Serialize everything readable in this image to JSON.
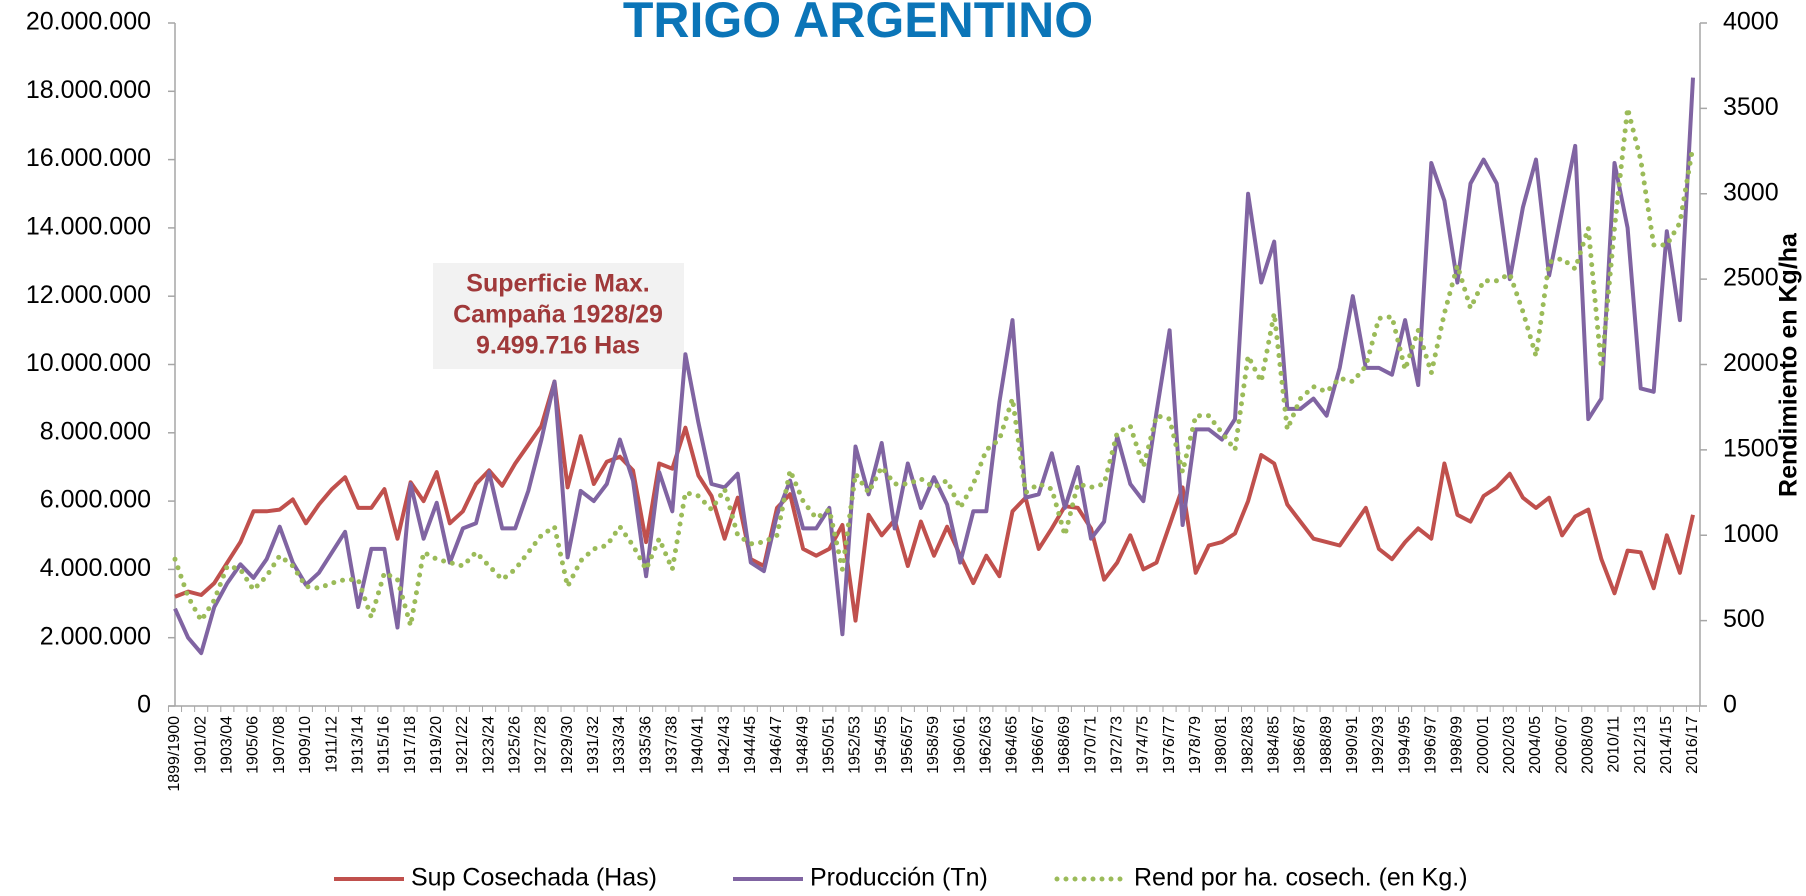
{
  "chart_data": {
    "type": "line",
    "title": "TRIGO ARGENTINO",
    "y2label": "Rendimiento en Kg/ha",
    "annotation": [
      "Superficie Max.",
      "Campaña 1928/29",
      "9.499.716  Has"
    ],
    "categories": [
      "1899/1900",
      null,
      "1901/02",
      null,
      "1903/04",
      null,
      "1905/06",
      null,
      "1907/08",
      null,
      "1909/10",
      null,
      "1911/12",
      null,
      "1913/14",
      null,
      "1915/16",
      null,
      "1917/18",
      null,
      "1919/20",
      null,
      "1921/22",
      null,
      "1923/24",
      null,
      "1925/26",
      null,
      "1927/28",
      null,
      "1929/30",
      null,
      "1931/32",
      null,
      "1933/34",
      null,
      "1935/36",
      null,
      "1937/38",
      null,
      "1940/41",
      null,
      "1942/43",
      null,
      "1944/45",
      null,
      "1946/47",
      null,
      "1948/49",
      null,
      "1950/51",
      null,
      "1952/53",
      null,
      "1954/55",
      null,
      "1956/57",
      null,
      "1958/59",
      null,
      "1960/61",
      null,
      "1962/63",
      null,
      "1964/65",
      null,
      "1966/67",
      null,
      "1968/69",
      null,
      "1970/71",
      null,
      "1972/73",
      null,
      "1974/75",
      null,
      "1976/77",
      null,
      "1978/79",
      null,
      "1980/81",
      null,
      "1982/83",
      null,
      "1984/85",
      null,
      "1986/87",
      null,
      "1988/89",
      null,
      "1990/91",
      null,
      "1992/93",
      null,
      "1994/95",
      null,
      "1996/97",
      null,
      "1998/99",
      null,
      "2000/01",
      null,
      "2002/03",
      null,
      "2004/05",
      null,
      "2006/07",
      null,
      "2008/09",
      null,
      "2010/11",
      null,
      "2012/13",
      null,
      "2014/15",
      null,
      "2016/17"
    ],
    "series": [
      {
        "name": "Sup Cosechada (Has)",
        "color": "#c0504d",
        "dash": false,
        "values": [
          3200000,
          3350000,
          3250000,
          3600000,
          4200000,
          4800000,
          5700000,
          5700000,
          5750000,
          6050000,
          5350000,
          5900000,
          6350000,
          6700000,
          5800000,
          5800000,
          6350000,
          4900000,
          6550000,
          6000000,
          6850000,
          5350000,
          5700000,
          6500000,
          6900000,
          6450000,
          7100000,
          7650000,
          8200000,
          9500000,
          6400000,
          7900000,
          6500000,
          7150000,
          7300000,
          6900000,
          4800000,
          7100000,
          6950000,
          8150000,
          6750000,
          6150000,
          4900000,
          6100000,
          4300000,
          4100000,
          5800000,
          6200000,
          4600000,
          4400000,
          4600000,
          5300000,
          2500000,
          5600000,
          5000000,
          5450000,
          4100000,
          5400000,
          4400000,
          5250000,
          4400000,
          3600000,
          4400000,
          3800000,
          5700000,
          6100000,
          4600000,
          5200000,
          5850000,
          5800000,
          5200000,
          3700000,
          4200000,
          5000000,
          4000000,
          4200000,
          5300000,
          6400000,
          3900000,
          4700000,
          4800000,
          5050000,
          6000000,
          7350000,
          7100000,
          5900000,
          5400000,
          4900000,
          4800000,
          4700000,
          5250000,
          5800000,
          4600000,
          4300000,
          4800000,
          5200000,
          4900000,
          7100000,
          5600000,
          5400000,
          6150000,
          6400000,
          6800000,
          6100000,
          5800000,
          6100000,
          5000000,
          5550000,
          5750000,
          4300000,
          3300000,
          4550000,
          4500000,
          3450000,
          5000000,
          3900000,
          5600000
        ]
      },
      {
        "name": "Producción (Tn)",
        "color": "#8064a2",
        "dash": false,
        "values": [
          2850000,
          2000000,
          1550000,
          2900000,
          3600000,
          4150000,
          3750000,
          4300000,
          5250000,
          4200000,
          3550000,
          3900000,
          4500000,
          5100000,
          2900000,
          4600000,
          4600000,
          2300000,
          6500000,
          4900000,
          5950000,
          4200000,
          5200000,
          5350000,
          6850000,
          5200000,
          5200000,
          6300000,
          7800000,
          9500000,
          4350000,
          6300000,
          6000000,
          6500000,
          7800000,
          6600000,
          3800000,
          6850000,
          5700000,
          10300000,
          8300000,
          6500000,
          6400000,
          6800000,
          4200000,
          3950000,
          5600000,
          6600000,
          5200000,
          5200000,
          5800000,
          2100000,
          7600000,
          6200000,
          7700000,
          5200000,
          7100000,
          5800000,
          6700000,
          5900000,
          4200000,
          5700000,
          5700000,
          8900000,
          11300000,
          6100000,
          6200000,
          7400000,
          5800000,
          7000000,
          4900000,
          5400000,
          7900000,
          6500000,
          6000000,
          8600000,
          11000000,
          5300000,
          8100000,
          8100000,
          7800000,
          8400000,
          15000000,
          12400000,
          13600000,
          8700000,
          8700000,
          9000000,
          8500000,
          9900000,
          12000000,
          9900000,
          9900000,
          9700000,
          11300000,
          9400000,
          15900000,
          14800000,
          12400000,
          15300000,
          16000000,
          15300000,
          12500000,
          14600000,
          16000000,
          12600000,
          14500000,
          16400000,
          8400000,
          9000000,
          15900000,
          14000000,
          9300000,
          9200000,
          13900000,
          11300000,
          18400000
        ]
      },
      {
        "name": "Rend por ha. cosech. (en Kg.)",
        "color": "#9bbb59",
        "dash": true,
        "axis": "y2",
        "values": [
          860,
          640,
          500,
          620,
          820,
          800,
          680,
          760,
          880,
          820,
          700,
          690,
          720,
          740,
          740,
          520,
          780,
          740,
          470,
          900,
          860,
          840,
          820,
          900,
          820,
          740,
          800,
          900,
          1000,
          1050,
          700,
          850,
          920,
          940,
          1050,
          940,
          800,
          980,
          800,
          1250,
          1230,
          1150,
          1270,
          1000,
          950,
          960,
          1000,
          1380,
          1200,
          1100,
          1150,
          800,
          1360,
          1250,
          1400,
          1300,
          1300,
          1330,
          1280,
          1320,
          1160,
          1300,
          1500,
          1560,
          1800,
          1250,
          1300,
          1270,
          1000,
          1300,
          1280,
          1300,
          1600,
          1640,
          1400,
          1700,
          1680,
          1370,
          1700,
          1700,
          1600,
          1500,
          2050,
          1900,
          2300,
          1620,
          1800,
          1870,
          1840,
          1920,
          1900,
          1990,
          2270,
          2280,
          1970,
          2200,
          1950,
          2300,
          2580,
          2330,
          2490,
          2490,
          2530,
          2310,
          2050,
          2600,
          2620,
          2560,
          2800,
          1980,
          2800,
          3500,
          3200,
          2700,
          2700,
          2830,
          3280
        ]
      }
    ],
    "ylim": [
      0,
      20000000
    ],
    "yticks": [
      0,
      {
        "value": 2000000,
        "label": "2.000.000"
      },
      {
        "value": 4000000,
        "label": "4.000.000"
      },
      {
        "value": 6000000,
        "label": "6.000.000"
      },
      {
        "value": 8000000,
        "label": "8.000.000"
      },
      {
        "value": 10000000,
        "label": "10.000.000"
      },
      {
        "value": 12000000,
        "label": "12.000.000"
      },
      {
        "value": 14000000,
        "label": "14.000.000"
      },
      {
        "value": 16000000,
        "label": "16.000.000"
      },
      {
        "value": 18000000,
        "label": "18.000.000"
      },
      {
        "value": 20000000,
        "label": "20.000.000"
      }
    ],
    "y2lim": [
      0,
      4000
    ],
    "y2ticks": [
      0,
      500,
      1000,
      1500,
      2000,
      2500,
      3000,
      3500,
      4000
    ],
    "grid": false,
    "legend": "bottom"
  }
}
